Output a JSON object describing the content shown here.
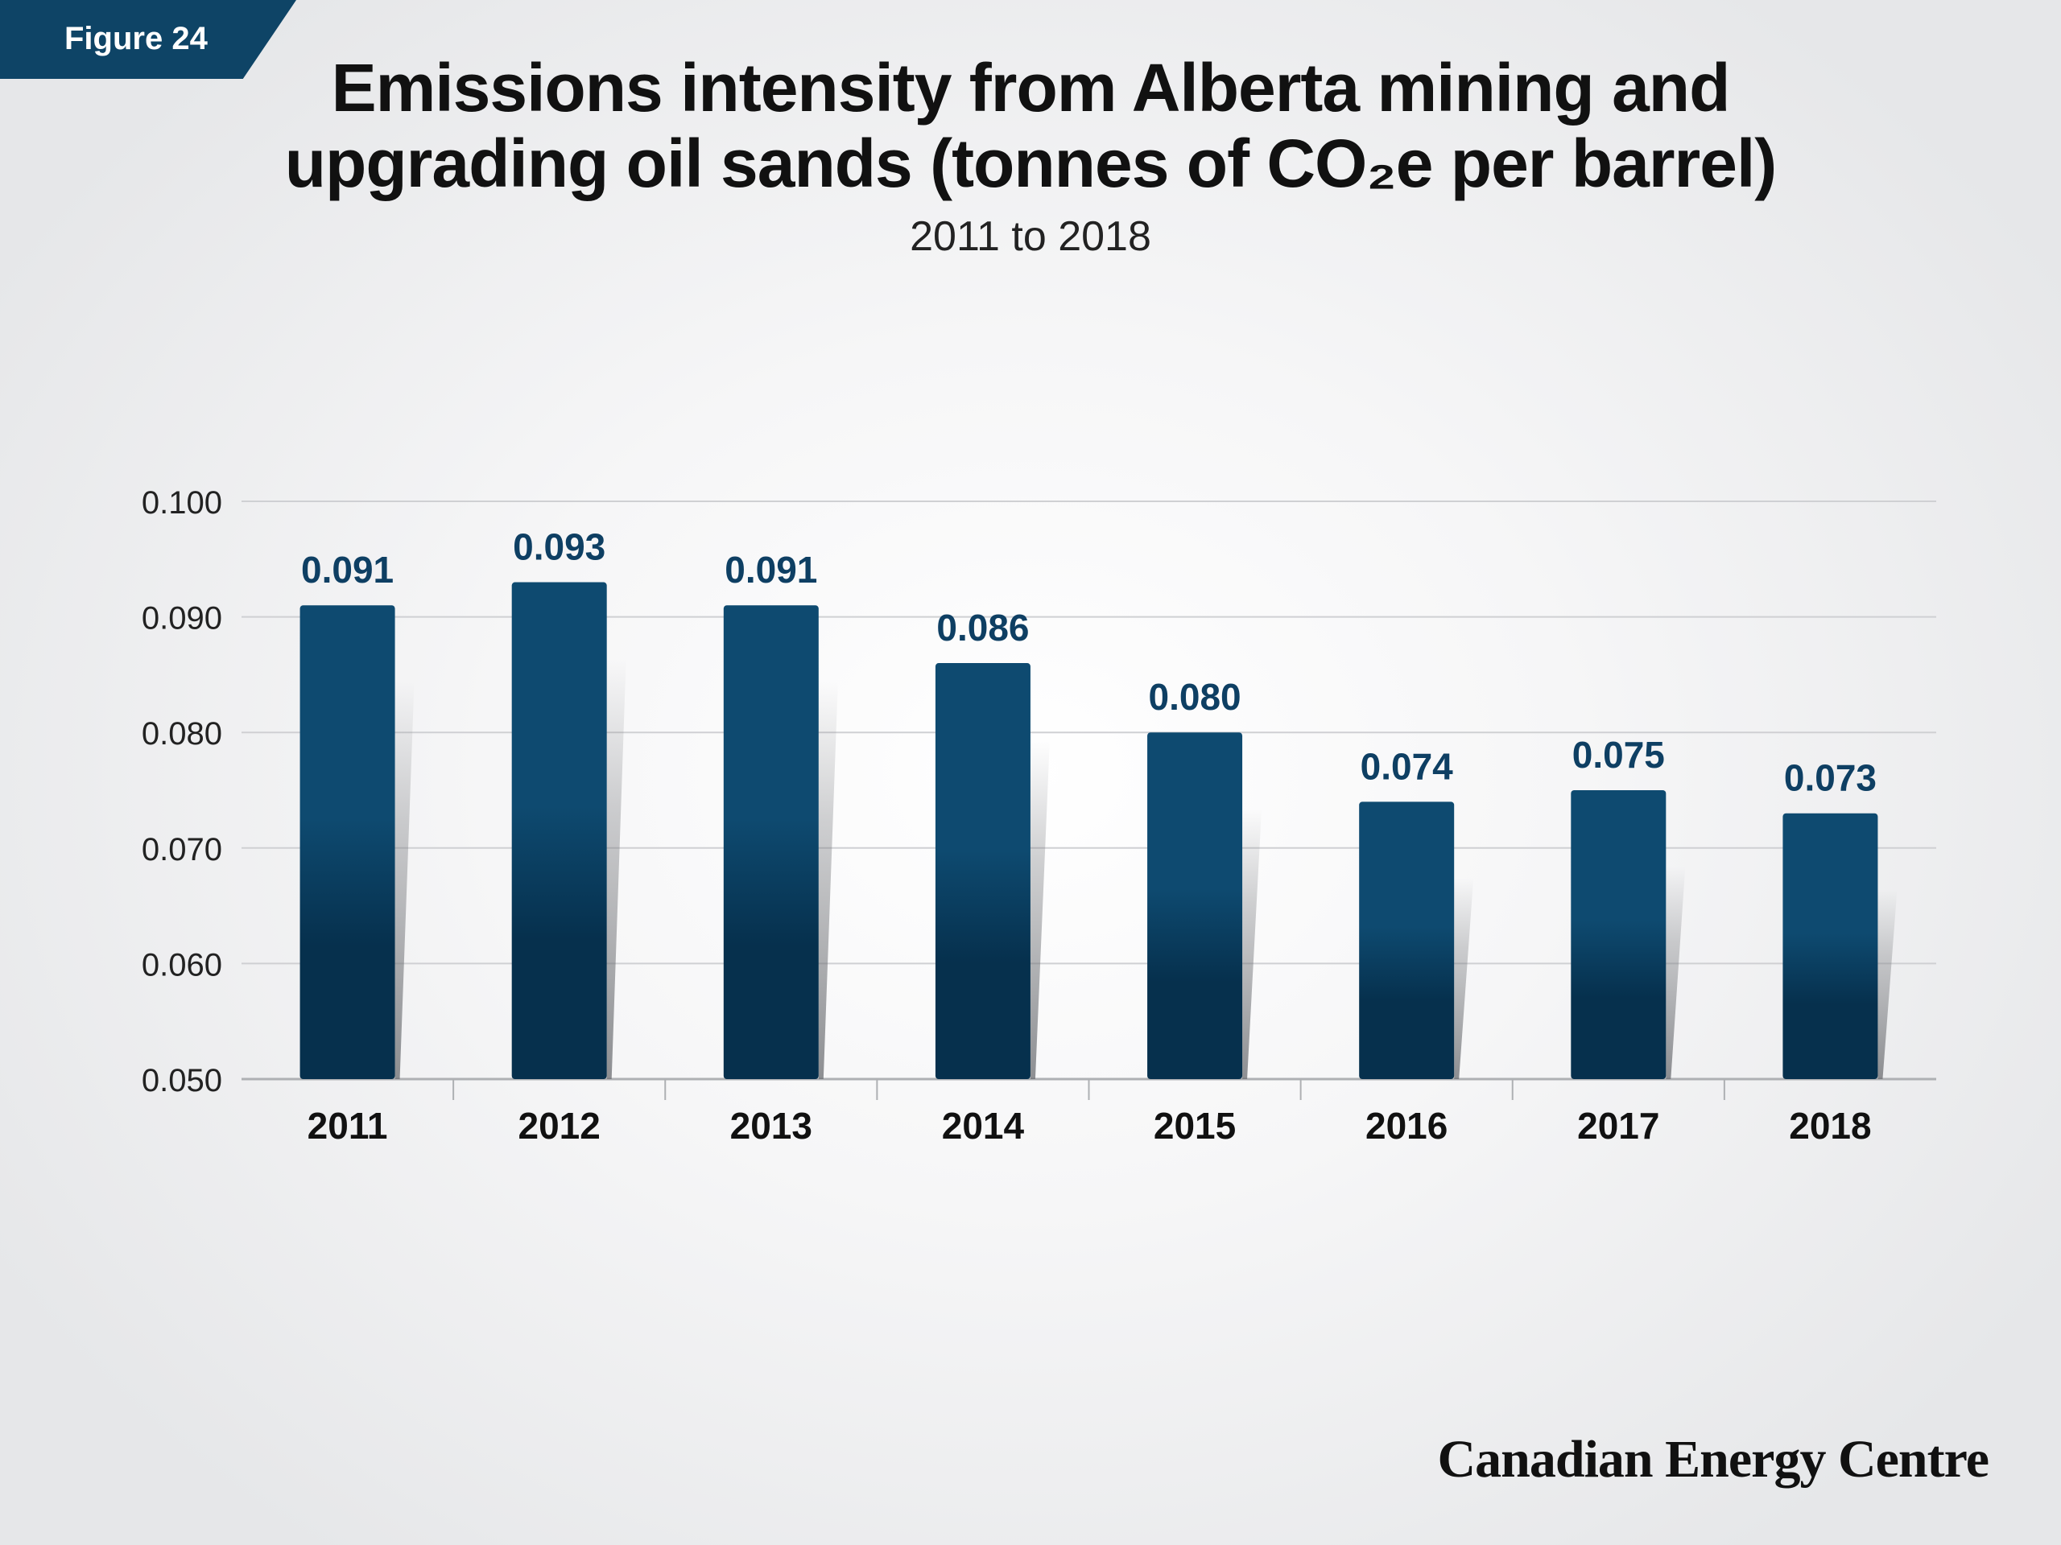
{
  "figure_label": "Figure 24",
  "title_line1": "Emissions intensity from Alberta mining and",
  "title_line2": "upgrading oil sands (tonnes of CO₂e per barrel)",
  "subtitle": "2011 to 2018",
  "brand": "Canadian Energy Centre",
  "colors": {
    "bar_top": "#0e4a70",
    "bar_bottom": "#06304d",
    "label": "#0e3f63",
    "grid": "#cfd0d3",
    "axis": "#aeb0b3",
    "tag": "#0e4466"
  },
  "chart_data": {
    "type": "bar",
    "title": "Emissions intensity from Alberta mining and upgrading oil sands (tonnes of CO₂e per barrel)",
    "subtitle": "2011 to 2018",
    "categories": [
      "2011",
      "2012",
      "2013",
      "2014",
      "2015",
      "2016",
      "2017",
      "2018"
    ],
    "values": [
      0.091,
      0.093,
      0.091,
      0.086,
      0.08,
      0.074,
      0.075,
      0.073
    ],
    "value_labels": [
      "0.091",
      "0.093",
      "0.091",
      "0.086",
      "0.080",
      "0.074",
      "0.075",
      "0.073"
    ],
    "yticks": [
      "0.100",
      "0.090",
      "0.080",
      "0.070",
      "0.060",
      "0.050"
    ],
    "ylim": [
      0.05,
      0.1
    ],
    "xlabel": "",
    "ylabel": "",
    "grid": true,
    "legend": "none"
  }
}
